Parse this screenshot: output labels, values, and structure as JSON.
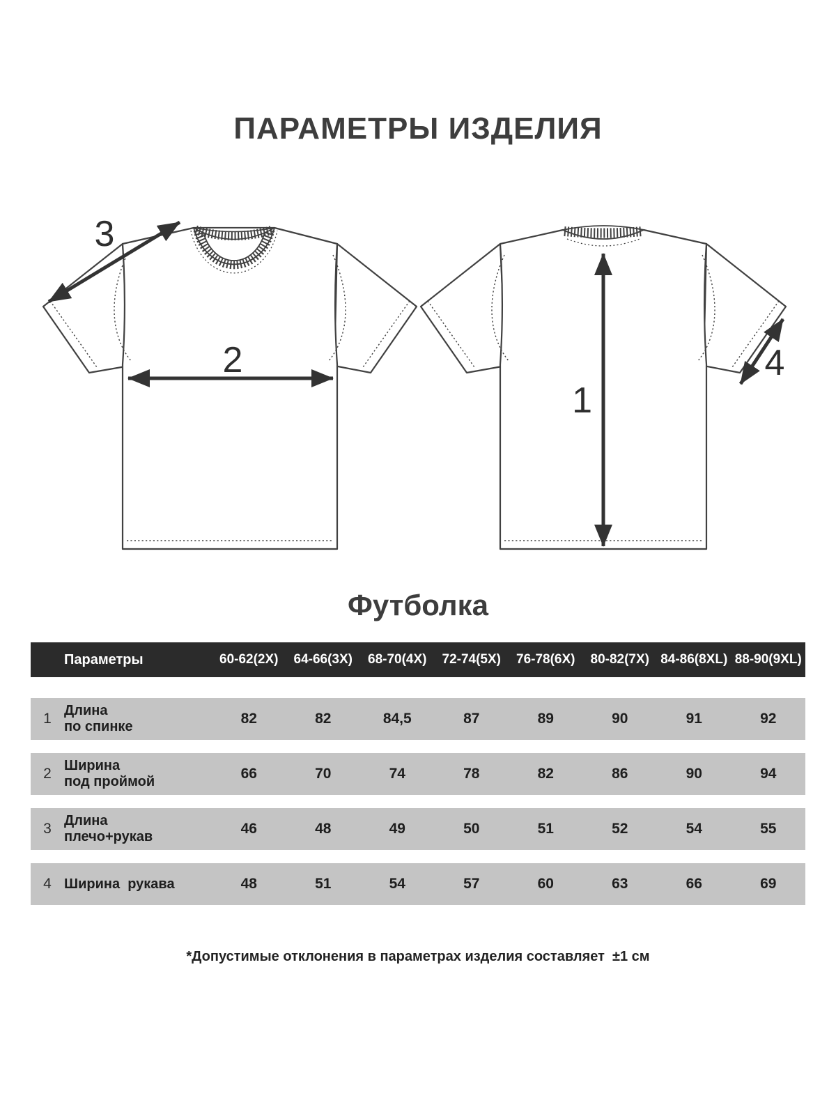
{
  "page": {
    "title": "ПАРАМЕТРЫ ИЗДЕЛИЯ",
    "product_title": "Футболка",
    "footnote": "*Допустимые отклонения в параметрах изделия составляет  ±1 см"
  },
  "diagram": {
    "views": [
      "front-tshirt-sketch",
      "back-tshirt-sketch"
    ],
    "measure_labels": [
      "1",
      "2",
      "3",
      "4"
    ],
    "line_color": "#414141",
    "arrow_color": "#333333"
  },
  "size_table": {
    "header": {
      "param_label": "Параметры",
      "sizes": [
        "60-62(2X)",
        "64-66(3X)",
        "68-70(4X)",
        "72-74(5X)",
        "76-78(6X)",
        "80-82(7X)",
        "84-86(8XL)",
        "88-90(9XL)"
      ]
    },
    "rows": [
      {
        "num": "1",
        "label_lines": [
          "Длина",
          "по спинке"
        ],
        "values": [
          "82",
          "82",
          "84,5",
          "87",
          "89",
          "90",
          "91",
          "92"
        ]
      },
      {
        "num": "2",
        "label_lines": [
          "Ширина",
          "под проймой"
        ],
        "values": [
          "66",
          "70",
          "74",
          "78",
          "82",
          "86",
          "90",
          "94"
        ]
      },
      {
        "num": "3",
        "label_lines": [
          "Длина",
          "плечо+рукав"
        ],
        "values": [
          "46",
          "48",
          "49",
          "50",
          "51",
          "52",
          "54",
          "55"
        ]
      },
      {
        "num": "4",
        "label_lines": [
          "Ширина  рукава"
        ],
        "values": [
          "48",
          "51",
          "54",
          "57",
          "60",
          "63",
          "66",
          "69"
        ]
      }
    ]
  },
  "colors": {
    "header_bg": "#2b2b2b",
    "row_bg": "#c4c4c4",
    "text_dark": "#3d3d3d"
  }
}
